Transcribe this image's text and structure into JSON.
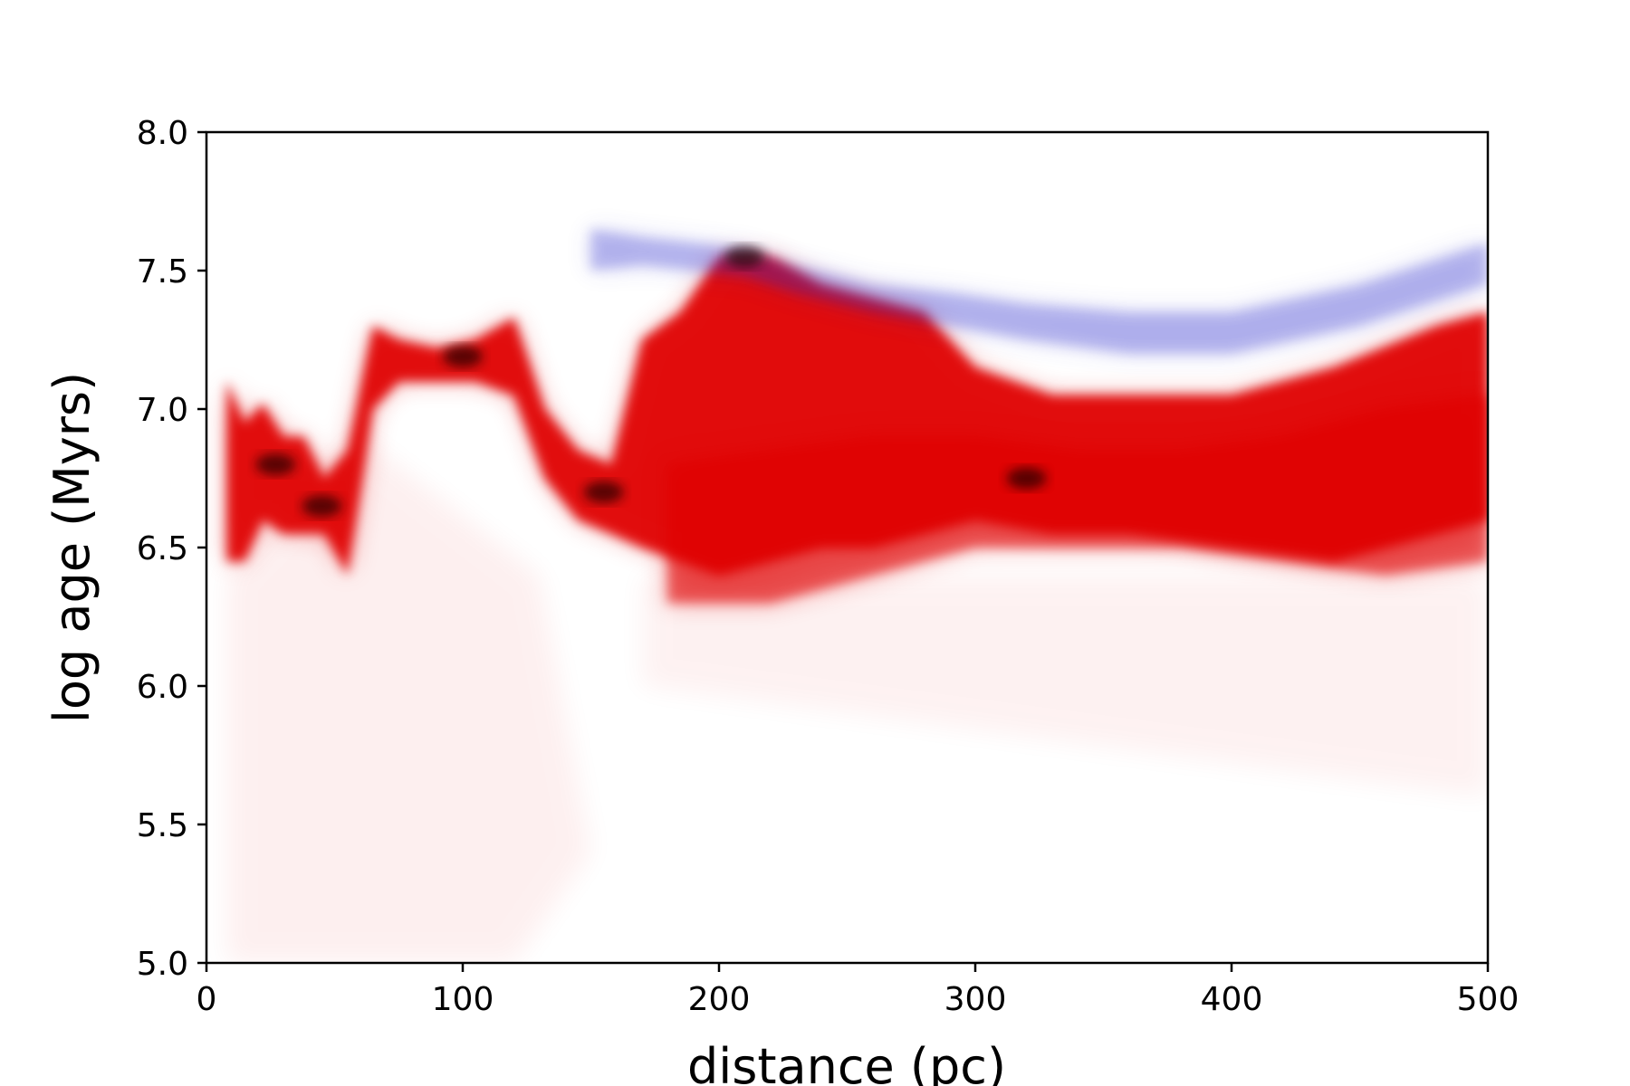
{
  "chart_data": {
    "type": "scatter",
    "title": "",
    "xlabel": "distance (pc)",
    "ylabel": "log age (Myrs)",
    "xlim": [
      0,
      500
    ],
    "ylim": [
      5.0,
      8.0
    ],
    "xticks": [
      0,
      100,
      200,
      300,
      400,
      500
    ],
    "xtick_labels": [
      "0",
      "100",
      "200",
      "300",
      "400",
      "500"
    ],
    "yticks": [
      5.0,
      5.5,
      6.0,
      6.5,
      7.0,
      7.5,
      8.0
    ],
    "ytick_labels": [
      "5.0",
      "5.5",
      "6.0",
      "6.5",
      "7.0",
      "7.5",
      "8.0"
    ],
    "grid": false,
    "legend": "none",
    "colors": {
      "red_series": "#e00000",
      "blue_series": "#2a2acc",
      "dense_core": "#1a0000"
    },
    "series": [
      {
        "color": "red",
        "bands": [
          {
            "x": [
              8,
              15,
              22,
              30,
              38,
              46,
              55,
              65,
              75,
              90,
              105,
              120,
              132,
              145,
              158,
              170,
              185,
              200,
              220,
              240,
              260,
              280,
              300,
              330,
              360,
              400,
              440,
              480,
              500
            ],
            "upper": [
              7.1,
              6.95,
              7.02,
              6.9,
              6.9,
              6.75,
              6.85,
              7.3,
              7.25,
              7.22,
              7.25,
              7.33,
              7.0,
              6.85,
              6.8,
              7.25,
              7.35,
              7.55,
              7.55,
              7.45,
              7.4,
              7.35,
              7.15,
              7.05,
              7.05,
              7.05,
              7.15,
              7.3,
              7.35
            ],
            "lower": [
              6.45,
              6.45,
              6.6,
              6.55,
              6.55,
              6.55,
              6.4,
              7.0,
              7.1,
              7.1,
              7.1,
              7.05,
              6.75,
              6.6,
              6.55,
              6.5,
              6.45,
              6.4,
              6.45,
              6.5,
              6.5,
              6.55,
              6.6,
              6.55,
              6.55,
              6.5,
              6.45,
              6.55,
              6.6
            ]
          },
          {
            "x": [
              180,
              220,
              260,
              300,
              340,
              380,
              420,
              460,
              500
            ],
            "upper": [
              6.8,
              6.85,
              6.9,
              6.9,
              6.85,
              6.85,
              6.9,
              7.0,
              7.05
            ],
            "lower": [
              6.3,
              6.3,
              6.4,
              6.5,
              6.5,
              6.5,
              6.45,
              6.4,
              6.45
            ]
          }
        ]
      },
      {
        "color": "blue",
        "bands": [
          {
            "x": [
              150,
              170,
              190,
              210,
              230,
              260,
              290,
              320,
              360,
              400,
              450,
              500
            ],
            "upper": [
              7.65,
              7.62,
              7.6,
              7.58,
              7.52,
              7.45,
              7.42,
              7.38,
              7.35,
              7.35,
              7.45,
              7.6
            ],
            "lower": [
              7.5,
              7.52,
              7.5,
              7.48,
              7.42,
              7.35,
              7.3,
              7.25,
              7.2,
              7.2,
              7.3,
              7.45
            ]
          }
        ]
      }
    ],
    "dense_cores": [
      {
        "x": 27,
        "y": 6.8
      },
      {
        "x": 45,
        "y": 6.65
      },
      {
        "x": 100,
        "y": 7.19
      },
      {
        "x": 155,
        "y": 6.7
      },
      {
        "x": 210,
        "y": 7.55
      },
      {
        "x": 320,
        "y": 6.75
      }
    ]
  }
}
